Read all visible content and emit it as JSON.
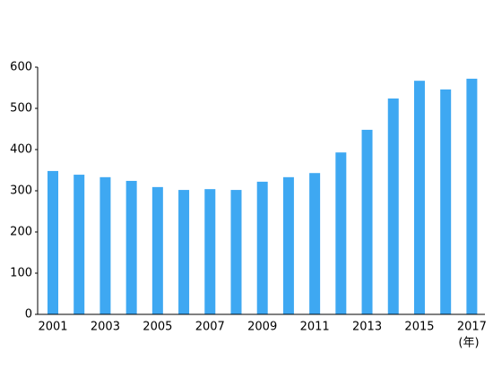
{
  "chart_data": {
    "type": "bar",
    "x_label": "(年)",
    "categories": [
      "2001",
      null,
      "2003",
      null,
      "2005",
      null,
      "2007",
      null,
      "2009",
      null,
      "2011",
      null,
      "2013",
      null,
      "2015",
      null,
      "2017"
    ],
    "values": [
      348,
      339,
      333,
      324,
      309,
      302,
      304,
      302,
      322,
      333,
      343,
      393,
      448,
      524,
      567,
      546,
      572
    ],
    "color": "#3ea8f2",
    "ylim": [
      0,
      600
    ],
    "yticks": [
      0,
      100,
      200,
      300,
      400,
      500,
      600
    ],
    "grid": false
  }
}
